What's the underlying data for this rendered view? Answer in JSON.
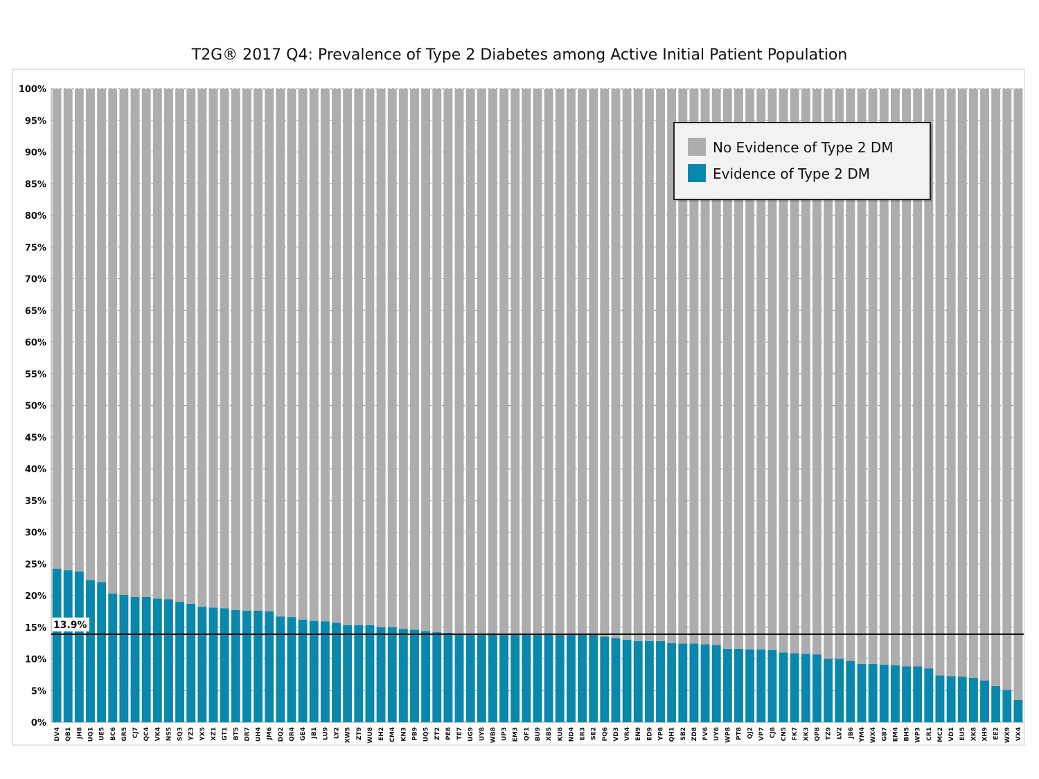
{
  "chart_data": {
    "type": "bar",
    "stacked": true,
    "title": "T2G® 2017 Q4: Prevalence of Type 2 Diabetes among Active Initial Patient Population",
    "xlabel": "",
    "ylabel": "",
    "ylim": [
      0,
      100
    ],
    "yticks": [
      "0%",
      "5%",
      "10%",
      "15%",
      "20%",
      "25%",
      "30%",
      "35%",
      "40%",
      "45%",
      "50%",
      "55%",
      "60%",
      "65%",
      "70%",
      "75%",
      "80%",
      "85%",
      "90%",
      "95%",
      "100%"
    ],
    "grid": true,
    "legend_position": "top-right",
    "categories": [
      "DV4",
      "QB1",
      "JH8",
      "UQ1",
      "UE5",
      "BC6",
      "GR5",
      "CJ7",
      "QC4",
      "VK4",
      "NS5",
      "SQ3",
      "YZ3",
      "YX5",
      "XZ1",
      "GT1",
      "BT5",
      "DR7",
      "UH4",
      "JM6",
      "DQ2",
      "QR4",
      "GE4",
      "JB1",
      "LU9",
      "LY2",
      "XW5",
      "ZT9",
      "WU8",
      "EH2",
      "CM4",
      "KN3",
      "PB9",
      "UQ5",
      "ZT2",
      "PE8",
      "TE7",
      "UG9",
      "UY8",
      "WB8",
      "UP3",
      "EM3",
      "QF1",
      "BU9",
      "XB5",
      "KU8",
      "ND4",
      "ER3",
      "SE2",
      "PQ6",
      "VD3",
      "VR4",
      "EN9",
      "ED9",
      "YP8",
      "QH1",
      "SB2",
      "ZD8",
      "FV6",
      "UY6",
      "WP8",
      "PT8",
      "QJ2",
      "VP7",
      "CJ8",
      "CN5",
      "FK7",
      "XK3",
      "QP8",
      "TZ9",
      "LV2",
      "JB6",
      "YM4",
      "WX4",
      "GB7",
      "EM4",
      "BH5",
      "WP3",
      "CR1",
      "MC2",
      "VD1",
      "EU5",
      "XK8",
      "XH9",
      "EE2",
      "WX9",
      "VX4"
    ],
    "series": [
      {
        "name": "No Evidence of Type 2 DM",
        "color": "#adadad",
        "values": [
          75.8,
          76.0,
          76.2,
          77.6,
          77.9,
          79.7,
          79.9,
          80.2,
          80.2,
          80.5,
          80.6,
          81.0,
          81.3,
          81.8,
          81.9,
          82.0,
          82.3,
          82.4,
          82.4,
          82.5,
          83.3,
          83.4,
          83.8,
          84.0,
          84.1,
          84.3,
          84.7,
          84.7,
          84.7,
          85.0,
          85.0,
          85.3,
          85.4,
          85.6,
          85.8,
          85.9,
          86.0,
          86.1,
          86.1,
          86.1,
          86.1,
          86.1,
          86.1,
          86.1,
          86.1,
          86.1,
          86.1,
          86.1,
          86.1,
          86.5,
          86.7,
          87.0,
          87.2,
          87.2,
          87.2,
          87.5,
          87.6,
          87.6,
          87.7,
          87.8,
          88.4,
          88.4,
          88.5,
          88.5,
          88.6,
          89.0,
          89.1,
          89.2,
          89.3,
          90.0,
          90.0,
          90.3,
          90.8,
          90.8,
          90.9,
          91.0,
          91.2,
          91.2,
          91.5,
          92.6,
          92.7,
          92.8,
          93.0,
          93.4,
          94.3,
          94.9,
          96.5
        ]
      },
      {
        "name": "Evidence of Type 2 DM",
        "color": "#0a87ac",
        "values": [
          24.2,
          24.0,
          23.8,
          22.4,
          22.1,
          20.3,
          20.1,
          19.8,
          19.8,
          19.5,
          19.4,
          19.0,
          18.7,
          18.2,
          18.1,
          18.0,
          17.7,
          17.6,
          17.6,
          17.5,
          16.7,
          16.6,
          16.2,
          16.0,
          15.9,
          15.7,
          15.3,
          15.3,
          15.3,
          15.0,
          15.0,
          14.7,
          14.6,
          14.4,
          14.2,
          14.1,
          14.0,
          13.9,
          13.9,
          13.9,
          13.9,
          13.9,
          13.9,
          13.9,
          13.9,
          13.9,
          13.9,
          13.9,
          13.9,
          13.5,
          13.3,
          13.0,
          12.8,
          12.8,
          12.8,
          12.5,
          12.4,
          12.4,
          12.3,
          12.2,
          11.6,
          11.6,
          11.5,
          11.5,
          11.4,
          11.0,
          10.9,
          10.8,
          10.7,
          10.0,
          10.0,
          9.7,
          9.2,
          9.2,
          9.1,
          9.0,
          8.8,
          8.8,
          8.5,
          7.4,
          7.3,
          7.2,
          7.0,
          6.6,
          5.7,
          5.1,
          3.5
        ]
      }
    ],
    "reference_line": {
      "value": 13.9,
      "label": "13.9%"
    }
  }
}
